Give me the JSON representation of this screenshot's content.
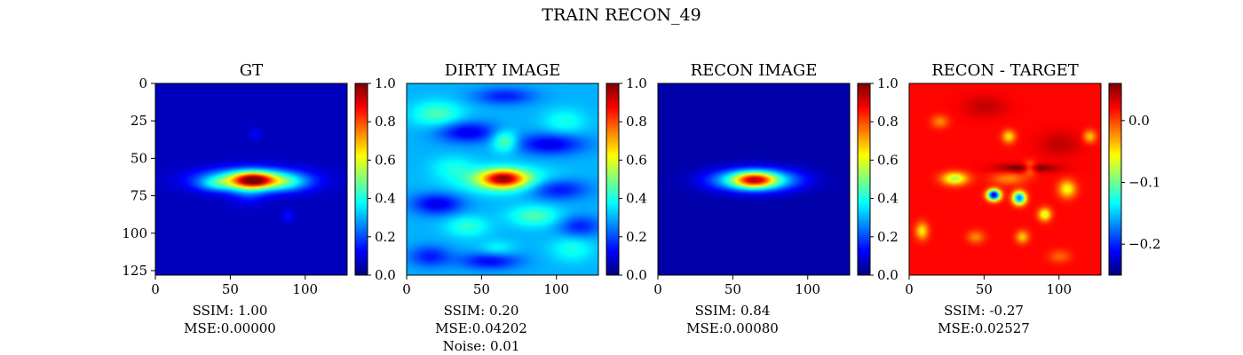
{
  "figure": {
    "suptitle": "TRAIN RECON_49"
  },
  "colormap": {
    "name": "jet",
    "stops": [
      "#00007f",
      "#0000ff",
      "#007fff",
      "#00ffff",
      "#7fff7f",
      "#ffff00",
      "#ff7f00",
      "#ff0000",
      "#7f0000"
    ]
  },
  "chart_data": [
    {
      "type": "heatmap",
      "title": "GT",
      "xlabel": "",
      "ylabel": "",
      "x_ticks": [
        "0",
        "50",
        "100"
      ],
      "y_ticks": [
        "0",
        "25",
        "50",
        "75",
        "100",
        "125"
      ],
      "xlim": [
        0,
        128
      ],
      "ylim": [
        128,
        0
      ],
      "colorbar": {
        "range": [
          0,
          1
        ],
        "ticks": [
          "0.0",
          "0.2",
          "0.4",
          "0.6",
          "0.8",
          "1.0"
        ]
      },
      "metrics": {
        "ssim": "SSIM: 1.00",
        "mse": "MSE:0.00000"
      },
      "image": {
        "background": 0.06,
        "blobs": [
          {
            "cx": 64,
            "cy": 64,
            "sx": 22,
            "sy": 5,
            "amp": 0.55
          },
          {
            "cx": 65,
            "cy": 64,
            "sx": 9,
            "sy": 3.5,
            "amp": 0.45
          },
          {
            "cx": 40,
            "cy": 67,
            "sx": 8,
            "sy": 3,
            "amp": 0.12
          },
          {
            "cx": 88,
            "cy": 66,
            "sx": 10,
            "sy": 4,
            "amp": 0.12
          },
          {
            "cx": 62,
            "cy": 72,
            "sx": 8,
            "sy": 6,
            "amp": 0.1
          },
          {
            "cx": 88,
            "cy": 88,
            "sx": 3,
            "sy": 3,
            "amp": 0.08
          },
          {
            "cx": 66,
            "cy": 33,
            "sx": 3,
            "sy": 3,
            "amp": 0.06
          }
        ]
      }
    },
    {
      "type": "heatmap",
      "title": "DIRTY IMAGE",
      "xlabel": "",
      "ylabel": "",
      "x_ticks": [
        "0",
        "50",
        "100"
      ],
      "y_ticks": [],
      "xlim": [
        0,
        128
      ],
      "ylim": [
        128,
        0
      ],
      "colorbar": {
        "range": [
          0,
          1
        ],
        "ticks": [
          "0.0",
          "0.2",
          "0.4",
          "0.6",
          "0.8",
          "1.0"
        ]
      },
      "metrics": {
        "ssim": "SSIM: 0.20",
        "mse": "MSE:0.04202",
        "noise": "Noise: 0.01"
      },
      "image": {
        "background": 0.3,
        "blobs": [
          {
            "cx": 64,
            "cy": 63,
            "sx": 10,
            "sy": 4,
            "amp": 0.5
          },
          {
            "cx": 64,
            "cy": 64,
            "sx": 22,
            "sy": 6,
            "amp": 0.2
          },
          {
            "cx": 20,
            "cy": 20,
            "sx": 12,
            "sy": 6,
            "amp": 0.15
          },
          {
            "cx": 65,
            "cy": 38,
            "sx": 6,
            "sy": 5,
            "amp": 0.2
          },
          {
            "cx": 105,
            "cy": 25,
            "sx": 10,
            "sy": 6,
            "amp": 0.1
          },
          {
            "cx": 40,
            "cy": 95,
            "sx": 10,
            "sy": 5,
            "amp": 0.12
          },
          {
            "cx": 85,
            "cy": 88,
            "sx": 12,
            "sy": 5,
            "amp": 0.15
          },
          {
            "cx": 110,
            "cy": 110,
            "sx": 10,
            "sy": 6,
            "amp": 0.1
          },
          {
            "cx": 60,
            "cy": 110,
            "sx": 8,
            "sy": 4,
            "amp": 0.08
          },
          {
            "cx": 30,
            "cy": 55,
            "sx": 10,
            "sy": 5,
            "amp": 0.08
          },
          {
            "cx": 40,
            "cy": 32,
            "sx": 14,
            "sy": 5,
            "amp": -0.2
          },
          {
            "cx": 95,
            "cy": 40,
            "sx": 16,
            "sy": 5,
            "amp": -0.2
          },
          {
            "cx": 20,
            "cy": 80,
            "sx": 12,
            "sy": 5,
            "amp": -0.2
          },
          {
            "cx": 100,
            "cy": 70,
            "sx": 14,
            "sy": 5,
            "amp": -0.18
          },
          {
            "cx": 55,
            "cy": 118,
            "sx": 14,
            "sy": 4,
            "amp": -0.18
          },
          {
            "cx": 115,
            "cy": 95,
            "sx": 10,
            "sy": 5,
            "amp": -0.15
          },
          {
            "cx": 65,
            "cy": 8,
            "sx": 14,
            "sy": 4,
            "amp": -0.15
          },
          {
            "cx": 15,
            "cy": 115,
            "sx": 10,
            "sy": 5,
            "amp": -0.15
          }
        ]
      }
    },
    {
      "type": "heatmap",
      "title": "RECON IMAGE",
      "xlabel": "",
      "ylabel": "",
      "x_ticks": [
        "0",
        "50",
        "100"
      ],
      "y_ticks": [],
      "xlim": [
        0,
        128
      ],
      "ylim": [
        128,
        0
      ],
      "colorbar": {
        "range": [
          0,
          1
        ],
        "ticks": [
          "0.0",
          "0.2",
          "0.4",
          "0.6",
          "0.8",
          "1.0"
        ]
      },
      "metrics": {
        "ssim": "SSIM: 0.84",
        "mse": "MSE:0.00080"
      },
      "image": {
        "background": 0.04,
        "blobs": [
          {
            "cx": 64,
            "cy": 64,
            "sx": 19,
            "sy": 5,
            "amp": 0.5
          },
          {
            "cx": 64,
            "cy": 64,
            "sx": 9,
            "sy": 3.5,
            "amp": 0.42
          }
        ]
      }
    },
    {
      "type": "heatmap",
      "title": "RECON - TARGET",
      "xlabel": "",
      "ylabel": "",
      "x_ticks": [
        "0",
        "50",
        "100"
      ],
      "y_ticks": [],
      "xlim": [
        0,
        128
      ],
      "ylim": [
        128,
        0
      ],
      "colorbar": {
        "range": [
          -0.25,
          0.06
        ],
        "ticks": [
          "0.0",
          "−0.1",
          "−0.2"
        ],
        "tick_values": [
          0,
          -0.1,
          -0.2
        ]
      },
      "metrics": {
        "ssim": "SSIM: -0.27",
        "mse": "MSE:0.02527"
      },
      "image": {
        "background": 0.02,
        "blobs": [
          {
            "cx": 56,
            "cy": 74,
            "sx": 3,
            "sy": 2.5,
            "amp": -0.26
          },
          {
            "cx": 73,
            "cy": 76,
            "sx": 3,
            "sy": 3,
            "amp": -0.2
          },
          {
            "cx": 90,
            "cy": 87,
            "sx": 3,
            "sy": 3,
            "amp": -0.09
          },
          {
            "cx": 30,
            "cy": 63,
            "sx": 6,
            "sy": 3,
            "amp": -0.1
          },
          {
            "cx": 66,
            "cy": 63,
            "sx": 8,
            "sy": 3,
            "amp": -0.04
          },
          {
            "cx": 105,
            "cy": 70,
            "sx": 4,
            "sy": 4,
            "amp": -0.08
          },
          {
            "cx": 66,
            "cy": 35,
            "sx": 3,
            "sy": 3,
            "amp": -0.07
          },
          {
            "cx": 80,
            "cy": 56,
            "sx": 3,
            "sy": 3,
            "amp": -0.06
          },
          {
            "cx": 120,
            "cy": 35,
            "sx": 3,
            "sy": 3,
            "amp": -0.06
          },
          {
            "cx": 75,
            "cy": 102,
            "sx": 3,
            "sy": 3,
            "amp": -0.06
          },
          {
            "cx": 8,
            "cy": 98,
            "sx": 3,
            "sy": 4,
            "amp": -0.07
          },
          {
            "cx": 20,
            "cy": 25,
            "sx": 4,
            "sy": 3,
            "amp": -0.04
          },
          {
            "cx": 44,
            "cy": 102,
            "sx": 4,
            "sy": 3,
            "amp": -0.04
          },
          {
            "cx": 100,
            "cy": 115,
            "sx": 5,
            "sy": 3,
            "amp": -0.03
          },
          {
            "cx": 78,
            "cy": 56,
            "sx": 14,
            "sy": 2,
            "amp": 0.05
          },
          {
            "cx": 50,
            "cy": 15,
            "sx": 10,
            "sy": 5,
            "amp": 0.02
          },
          {
            "cx": 100,
            "cy": 40,
            "sx": 10,
            "sy": 6,
            "amp": 0.02
          }
        ]
      }
    }
  ]
}
